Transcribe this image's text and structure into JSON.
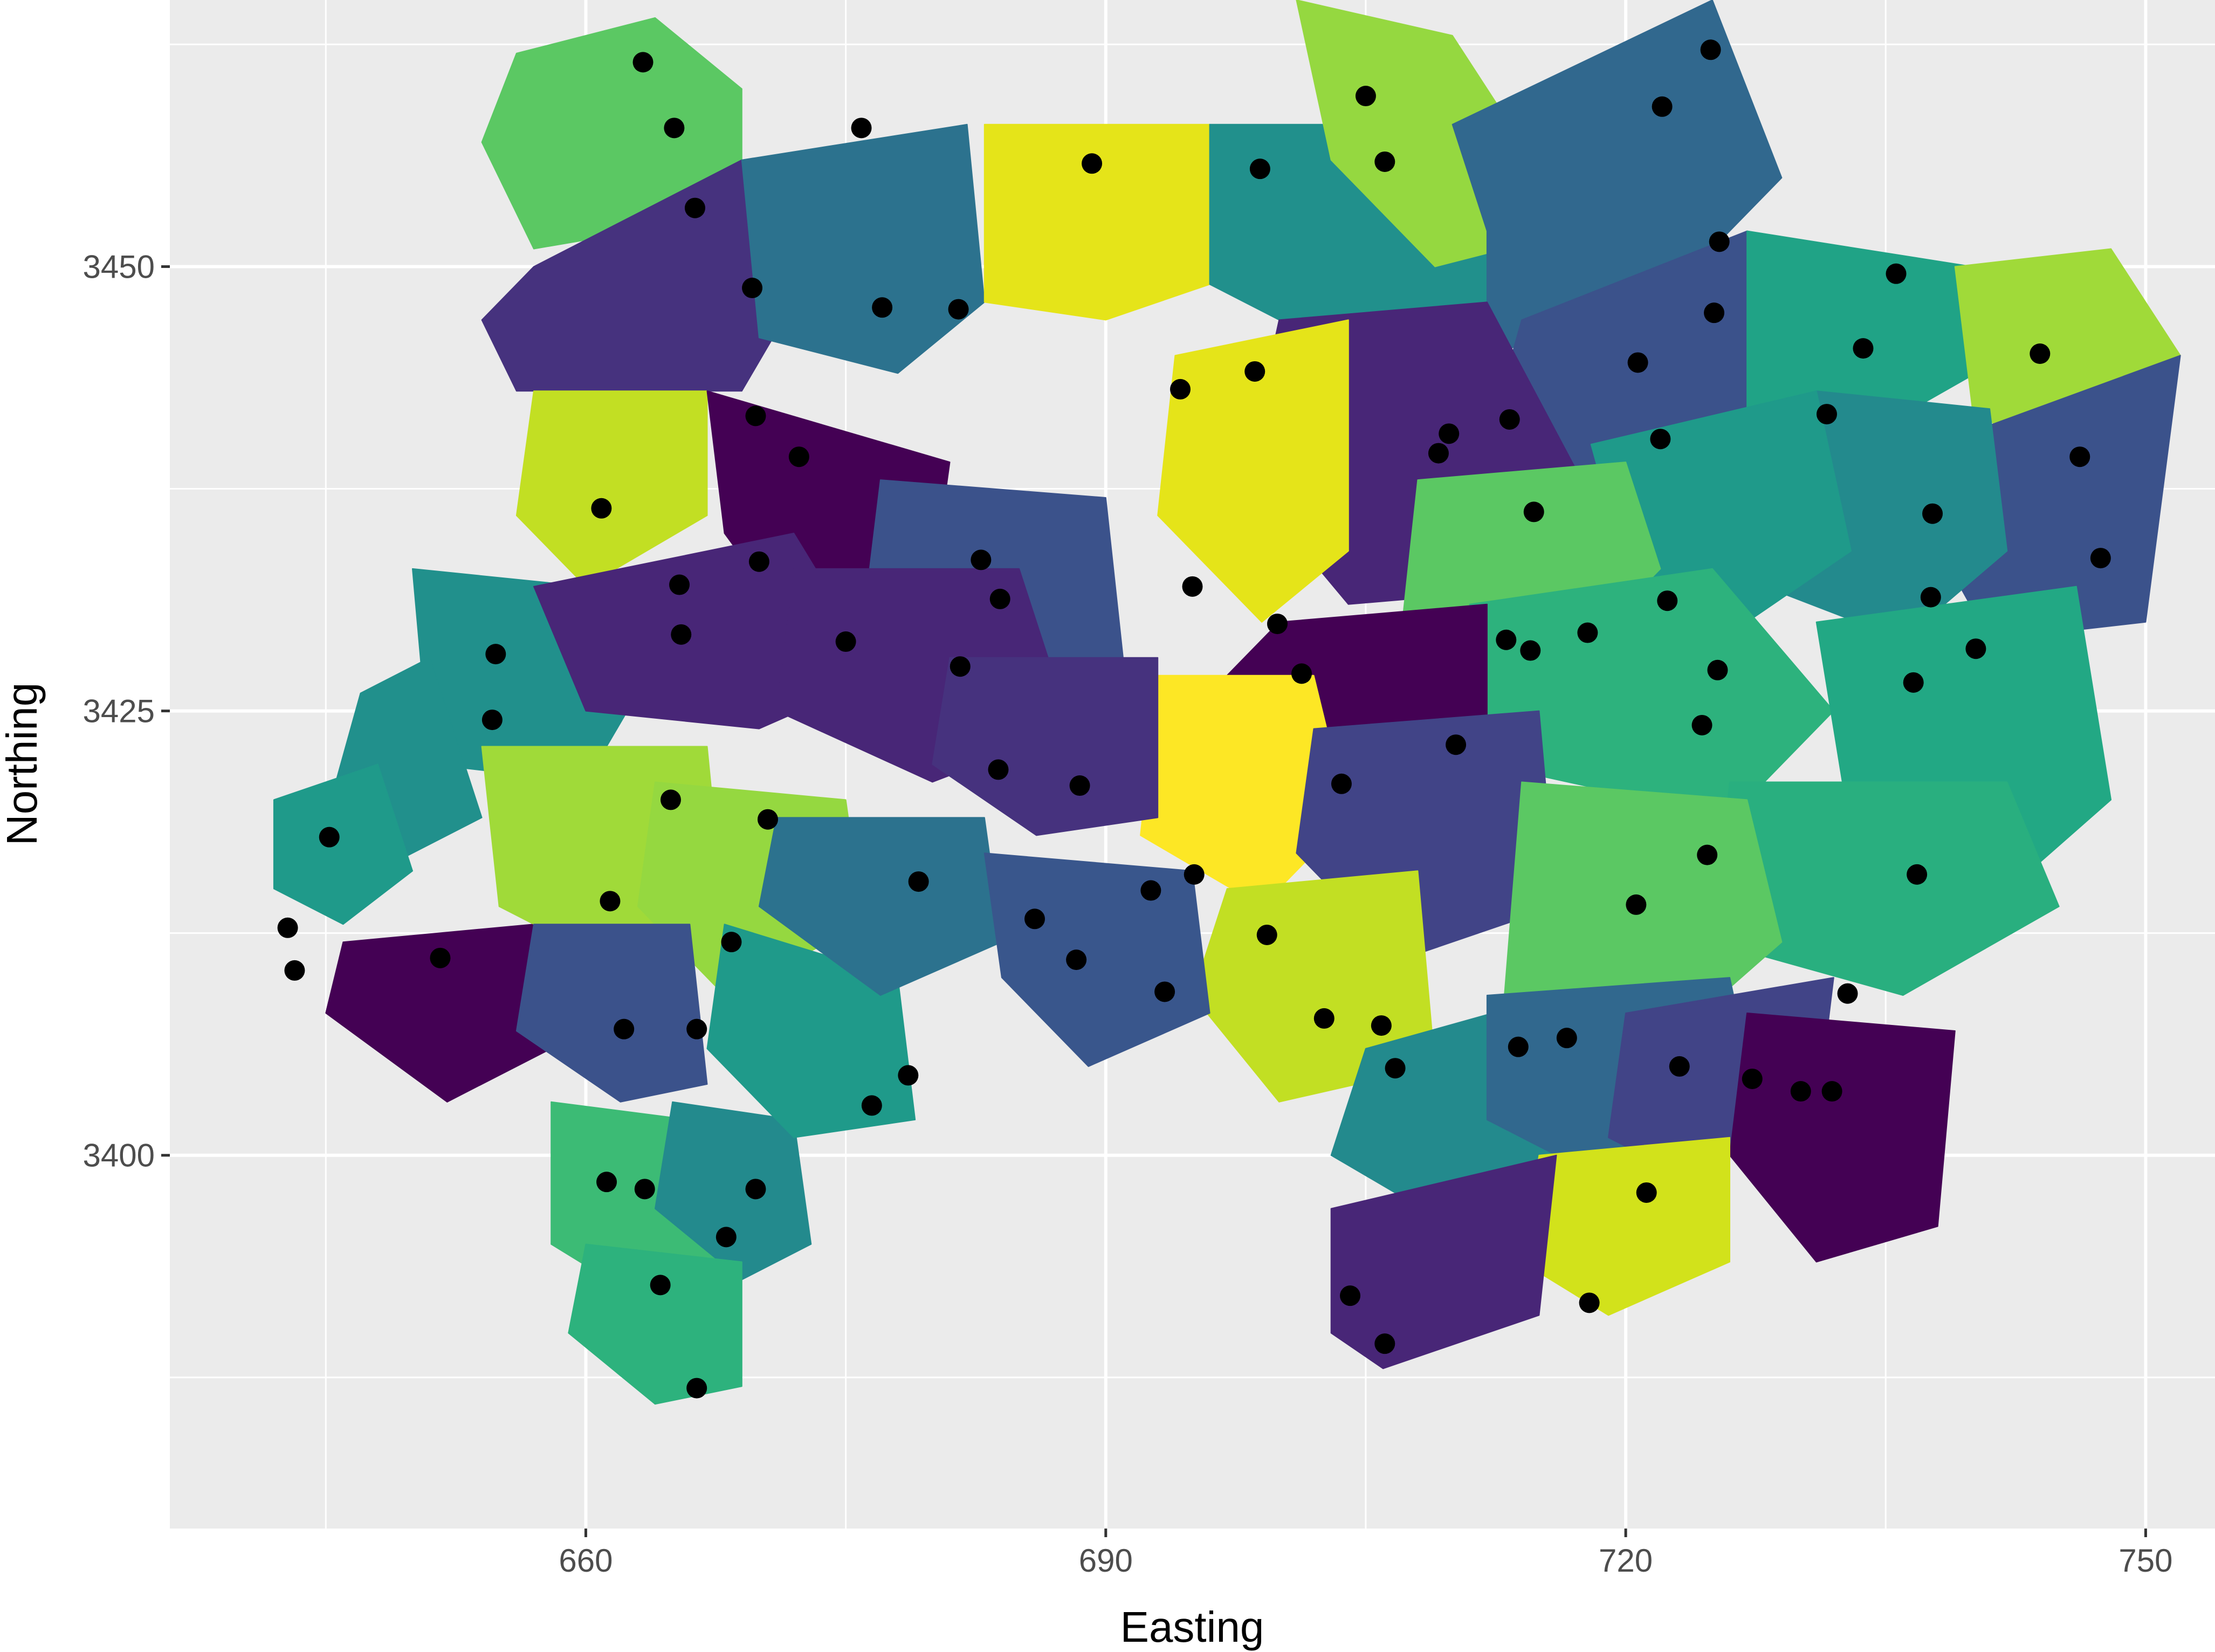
{
  "chart_data": {
    "type": "scatter",
    "xlabel": "Easting",
    "ylabel": "Northing",
    "xlim": [
      636,
      754
    ],
    "ylim": [
      3379,
      3465
    ],
    "x_ticks": [
      660,
      690,
      720,
      750
    ],
    "y_ticks": [
      3400,
      3425,
      3450
    ],
    "x_tick_labels": [
      "660",
      "690",
      "720",
      "750"
    ],
    "y_tick_labels": [
      "3400",
      "3425",
      "3450"
    ],
    "grid": true,
    "legend": "none",
    "background_color": "#EBEBEB",
    "grid_color": "#FFFFFF",
    "point_color": "#000000",
    "fill_colormap": "viridis",
    "regions": [
      {
        "x": [
          656,
          664,
          669,
          669,
          657,
          654
        ],
        "y": [
          3462,
          3464,
          3460,
          3453,
          3451,
          3457
        ],
        "color": "#5BC863"
      },
      {
        "x": [
          657,
          669,
          672,
          669,
          656,
          654
        ],
        "y": [
          3450,
          3456,
          3448,
          3443,
          3443,
          3447
        ],
        "color": "#46327E"
      },
      {
        "x": [
          669,
          682,
          683,
          678,
          670
        ],
        "y": [
          3456,
          3458,
          3448,
          3444,
          3446
        ],
        "color": "#2C728E"
      },
      {
        "x": [
          683,
          696,
          696,
          690,
          683
        ],
        "y": [
          3458,
          3458,
          3449,
          3447,
          3448
        ],
        "color": "#E5E419"
      },
      {
        "x": [
          696,
          712,
          712,
          702,
          696
        ],
        "y": [
          3458,
          3458,
          3448,
          3446,
          3449
        ],
        "color": "#21908C"
      },
      {
        "x": [
          701,
          710,
          714,
          713,
          709,
          703
        ],
        "y": [
          3465,
          3463,
          3457,
          3451,
          3450,
          3456
        ],
        "color": "#95D840"
      },
      {
        "x": [
          710,
          725,
          729,
          722,
          712,
          712
        ],
        "y": [
          3458,
          3465,
          3455,
          3448,
          3445,
          3452
        ],
        "color": "#31688E"
      },
      {
        "x": [
          714,
          727,
          731,
          727,
          718,
          712
        ],
        "y": [
          3447,
          3452,
          3450,
          3441,
          3438,
          3440
        ],
        "color": "#3B528B"
      },
      {
        "x": [
          727,
          740,
          742,
          733,
          727
        ],
        "y": [
          3452,
          3450,
          3445,
          3440,
          3441
        ],
        "color": "#20A386"
      },
      {
        "x": [
          739,
          748,
          752,
          746,
          740
        ],
        "y": [
          3450,
          3451,
          3445,
          3438,
          3442
        ],
        "color": "#A0DA39"
      },
      {
        "x": [
          738,
          752,
          750,
          741,
          737
        ],
        "y": [
          3440,
          3445,
          3430,
          3429,
          3436
        ],
        "color": "#3B528B"
      },
      {
        "x": [
          731,
          741,
          742,
          736,
          728
        ],
        "y": [
          3443,
          3442,
          3434,
          3429,
          3432
        ],
        "color": "#238A8D"
      },
      {
        "x": [
          718,
          731,
          733,
          727,
          720
        ],
        "y": [
          3440,
          3443,
          3434,
          3430,
          3433
        ],
        "color": "#1F9A8A"
      },
      {
        "x": [
          700,
          712,
          718,
          716,
          704,
          698
        ],
        "y": [
          3447,
          3448,
          3437,
          3432,
          3431,
          3438
        ],
        "color": "#482677"
      },
      {
        "x": [
          694,
          704,
          704,
          699,
          693
        ],
        "y": [
          3445,
          3447,
          3434,
          3430,
          3436
        ],
        "color": "#E5E419"
      },
      {
        "x": [
          708,
          720,
          722,
          716,
          707
        ],
        "y": [
          3438,
          3439,
          3433,
          3427,
          3429
        ],
        "color": "#5BC863"
      },
      {
        "x": [
          711,
          725,
          732,
          726,
          712
        ],
        "y": [
          3431,
          3433,
          3425,
          3419,
          3422
        ],
        "color": "#2DB27D"
      },
      {
        "x": [
          731,
          746,
          748,
          741,
          733
        ],
        "y": [
          3430,
          3432,
          3420,
          3414,
          3418
        ],
        "color": "#22A884"
      },
      {
        "x": [
          726,
          742,
          745,
          736,
          725
        ],
        "y": [
          3421,
          3421,
          3414,
          3409,
          3412
        ],
        "color": "#29AF7F"
      },
      {
        "x": [
          700,
          712,
          712,
          702,
          696
        ],
        "y": [
          3430,
          3431,
          3422,
          3419,
          3426
        ],
        "color": "#440154"
      },
      {
        "x": [
          693,
          702,
          704,
          699,
          692
        ],
        "y": [
          3427,
          3427,
          3419,
          3414,
          3418
        ],
        "color": "#FDE725"
      },
      {
        "x": [
          702,
          715,
          716,
          707,
          701
        ],
        "y": [
          3424,
          3425,
          3414,
          3411,
          3417
        ],
        "color": "#414487"
      },
      {
        "x": [
          714,
          727,
          729,
          722,
          713
        ],
        "y": [
          3421,
          3420,
          3412,
          3406,
          3409
        ],
        "color": "#5BC863"
      },
      {
        "x": [
          697,
          708,
          709,
          700,
          695
        ],
        "y": [
          3415,
          3416,
          3405,
          3403,
          3409
        ],
        "color": "#C2DF23"
      },
      {
        "x": [
          705,
          716,
          717,
          710,
          703
        ],
        "y": [
          3406,
          3409,
          3400,
          3396,
          3400
        ],
        "color": "#238A8D"
      },
      {
        "x": [
          712,
          726,
          728,
          720,
          712
        ],
        "y": [
          3409,
          3410,
          3401,
          3398,
          3402
        ],
        "color": "#31688E"
      },
      {
        "x": [
          720,
          732,
          731,
          723,
          719
        ],
        "y": [
          3408,
          3410,
          3402,
          3399,
          3401
        ],
        "color": "#414487"
      },
      {
        "x": [
          727,
          739,
          738,
          731,
          726
        ],
        "y": [
          3408,
          3407,
          3396,
          3394,
          3400
        ],
        "color": "#440154"
      },
      {
        "x": [
          715,
          726,
          726,
          719,
          714
        ],
        "y": [
          3400,
          3401,
          3394,
          3391,
          3394
        ],
        "color": "#D2E21B"
      },
      {
        "x": [
          703,
          716,
          715,
          706,
          703
        ],
        "y": [
          3397,
          3400,
          3391,
          3388,
          3390
        ],
        "color": "#482677"
      },
      {
        "x": [
          650,
          660,
          663,
          660,
          651
        ],
        "y": [
          3433,
          3432,
          3426,
          3421,
          3422
        ],
        "color": "#21908C"
      },
      {
        "x": [
          647,
          651,
          654,
          648,
          645
        ],
        "y": [
          3426,
          3428,
          3419,
          3416,
          3419
        ],
        "color": "#21908C"
      },
      {
        "x": [
          642,
          648,
          650,
          646,
          642
        ],
        "y": [
          3420,
          3422,
          3416,
          3413,
          3415
        ],
        "color": "#1F9A8A"
      },
      {
        "x": [
          646,
          657,
          658,
          652,
          645
        ],
        "y": [
          3412,
          3413,
          3406,
          3403,
          3408
        ],
        "color": "#440154"
      },
      {
        "x": [
          654,
          667,
          668,
          661,
          655
        ],
        "y": [
          3423,
          3423,
          3413,
          3411,
          3414
        ],
        "color": "#A0DA39"
      },
      {
        "x": [
          664,
          675,
          676,
          668,
          663
        ],
        "y": [
          3421,
          3420,
          3413,
          3409,
          3414
        ],
        "color": "#95D840"
      },
      {
        "x": [
          657,
          666,
          667,
          662,
          656
        ],
        "y": [
          3413,
          3413,
          3404,
          3403,
          3407
        ],
        "color": "#3B528B"
      },
      {
        "x": [
          658,
          666,
          668,
          663,
          658
        ],
        "y": [
          3403,
          3402,
          3394,
          3392,
          3395
        ],
        "color": "#3CBB75"
      },
      {
        "x": [
          665,
          672,
          673,
          669,
          664
        ],
        "y": [
          3403,
          3402,
          3395,
          3393,
          3397
        ],
        "color": "#238A8D"
      },
      {
        "x": [
          660,
          669,
          669,
          664,
          659
        ],
        "y": [
          3395,
          3394,
          3387,
          3386,
          3390
        ],
        "color": "#2DB27D"
      },
      {
        "x": [
          668,
          678,
          679,
          672,
          667
        ],
        "y": [
          3413,
          3410,
          3402,
          3401,
          3406
        ],
        "color": "#1F9A8A"
      },
      {
        "x": [
          671,
          683,
          684,
          677,
          670
        ],
        "y": [
          3419,
          3419,
          3412,
          3409,
          3414
        ],
        "color": "#2C728E"
      },
      {
        "x": [
          657,
          667,
          667,
          660,
          656
        ],
        "y": [
          3443,
          3443,
          3436,
          3432,
          3436
        ],
        "color": "#C2DF23"
      },
      {
        "x": [
          667,
          681,
          680,
          671,
          668
        ],
        "y": [
          3443,
          3439,
          3432,
          3431,
          3435
        ],
        "color": "#440154"
      },
      {
        "x": [
          657,
          672,
          677,
          670,
          660
        ],
        "y": [
          3432,
          3435,
          3427,
          3424,
          3425
        ],
        "color": "#482677"
      },
      {
        "x": [
          677,
          690,
          691,
          683,
          676
        ],
        "y": [
          3438,
          3437,
          3428,
          3426,
          3430
        ],
        "color": "#3B528B"
      },
      {
        "x": [
          672,
          685,
          688,
          680,
          671
        ],
        "y": [
          3433,
          3433,
          3424,
          3421,
          3425
        ],
        "color": "#482677"
      },
      {
        "x": [
          681,
          693,
          693,
          686,
          680
        ],
        "y": [
          3428,
          3428,
          3419,
          3418,
          3422
        ],
        "color": "#46327E"
      },
      {
        "x": [
          683,
          695,
          696,
          689,
          684
        ],
        "y": [
          3417,
          3416,
          3408,
          3405,
          3410
        ],
        "color": "#39568C"
      }
    ],
    "points": [
      {
        "x": 663.3,
        "y": 3461.5
      },
      {
        "x": 665.1,
        "y": 3457.8
      },
      {
        "x": 666.3,
        "y": 3453.3
      },
      {
        "x": 669.6,
        "y": 3448.8
      },
      {
        "x": 675.9,
        "y": 3457.8
      },
      {
        "x": 677.1,
        "y": 3447.7
      },
      {
        "x": 681.5,
        "y": 3447.6
      },
      {
        "x": 689.2,
        "y": 3455.8
      },
      {
        "x": 698.9,
        "y": 3455.5
      },
      {
        "x": 705.0,
        "y": 3459.6
      },
      {
        "x": 706.1,
        "y": 3455.9
      },
      {
        "x": 722.1,
        "y": 3459.0
      },
      {
        "x": 724.9,
        "y": 3462.2
      },
      {
        "x": 725.4,
        "y": 3451.4
      },
      {
        "x": 725.1,
        "y": 3447.4
      },
      {
        "x": 735.6,
        "y": 3449.6
      },
      {
        "x": 733.7,
        "y": 3445.4
      },
      {
        "x": 743.9,
        "y": 3445.1
      },
      {
        "x": 731.6,
        "y": 3441.7
      },
      {
        "x": 720.7,
        "y": 3444.6
      },
      {
        "x": 722.0,
        "y": 3440.3
      },
      {
        "x": 713.3,
        "y": 3441.4
      },
      {
        "x": 709.8,
        "y": 3440.6
      },
      {
        "x": 709.2,
        "y": 3439.5
      },
      {
        "x": 698.6,
        "y": 3444.1
      },
      {
        "x": 694.3,
        "y": 3443.1
      },
      {
        "x": 669.8,
        "y": 3441.6
      },
      {
        "x": 672.3,
        "y": 3439.3
      },
      {
        "x": 660.9,
        "y": 3436.4
      },
      {
        "x": 714.7,
        "y": 3436.2
      },
      {
        "x": 746.2,
        "y": 3439.3
      },
      {
        "x": 737.7,
        "y": 3436.1
      },
      {
        "x": 747.4,
        "y": 3433.6
      },
      {
        "x": 737.6,
        "y": 3431.4
      },
      {
        "x": 722.4,
        "y": 3431.2
      },
      {
        "x": 682.8,
        "y": 3433.5
      },
      {
        "x": 683.9,
        "y": 3431.3
      },
      {
        "x": 670.0,
        "y": 3433.4
      },
      {
        "x": 665.4,
        "y": 3432.1
      },
      {
        "x": 695.0,
        "y": 3432.0
      },
      {
        "x": 699.9,
        "y": 3429.9
      },
      {
        "x": 701.3,
        "y": 3427.1
      },
      {
        "x": 713.1,
        "y": 3429.0
      },
      {
        "x": 714.5,
        "y": 3428.4
      },
      {
        "x": 717.8,
        "y": 3429.4
      },
      {
        "x": 725.3,
        "y": 3427.3
      },
      {
        "x": 740.2,
        "y": 3428.5
      },
      {
        "x": 736.6,
        "y": 3426.6
      },
      {
        "x": 665.5,
        "y": 3429.3
      },
      {
        "x": 675.0,
        "y": 3428.9
      },
      {
        "x": 681.6,
        "y": 3427.5
      },
      {
        "x": 654.8,
        "y": 3428.2
      },
      {
        "x": 654.6,
        "y": 3424.5
      },
      {
        "x": 724.4,
        "y": 3424.2
      },
      {
        "x": 710.2,
        "y": 3423.1
      },
      {
        "x": 683.8,
        "y": 3421.7
      },
      {
        "x": 688.5,
        "y": 3420.8
      },
      {
        "x": 703.6,
        "y": 3420.9
      },
      {
        "x": 664.9,
        "y": 3420.0
      },
      {
        "x": 670.5,
        "y": 3418.9
      },
      {
        "x": 645.2,
        "y": 3417.9
      },
      {
        "x": 724.7,
        "y": 3416.9
      },
      {
        "x": 736.8,
        "y": 3415.8
      },
      {
        "x": 695.1,
        "y": 3415.8
      },
      {
        "x": 692.6,
        "y": 3414.9
      },
      {
        "x": 679.2,
        "y": 3415.4
      },
      {
        "x": 661.4,
        "y": 3414.3
      },
      {
        "x": 720.6,
        "y": 3414.1
      },
      {
        "x": 685.9,
        "y": 3413.3
      },
      {
        "x": 642.8,
        "y": 3412.8
      },
      {
        "x": 699.3,
        "y": 3412.4
      },
      {
        "x": 668.4,
        "y": 3412.0
      },
      {
        "x": 651.6,
        "y": 3411.1
      },
      {
        "x": 688.3,
        "y": 3411.0
      },
      {
        "x": 643.2,
        "y": 3410.4
      },
      {
        "x": 693.4,
        "y": 3409.2
      },
      {
        "x": 732.8,
        "y": 3409.1
      },
      {
        "x": 702.6,
        "y": 3407.7
      },
      {
        "x": 705.9,
        "y": 3407.3
      },
      {
        "x": 662.2,
        "y": 3407.1
      },
      {
        "x": 666.4,
        "y": 3407.1
      },
      {
        "x": 716.6,
        "y": 3406.6
      },
      {
        "x": 713.8,
        "y": 3406.1
      },
      {
        "x": 723.1,
        "y": 3405.0
      },
      {
        "x": 706.7,
        "y": 3404.9
      },
      {
        "x": 678.6,
        "y": 3404.5
      },
      {
        "x": 727.3,
        "y": 3404.3
      },
      {
        "x": 731.9,
        "y": 3403.6
      },
      {
        "x": 730.1,
        "y": 3403.6
      },
      {
        "x": 676.5,
        "y": 3402.8
      },
      {
        "x": 661.2,
        "y": 3398.5
      },
      {
        "x": 663.4,
        "y": 3398.1
      },
      {
        "x": 669.8,
        "y": 3398.1
      },
      {
        "x": 721.2,
        "y": 3397.9
      },
      {
        "x": 668.1,
        "y": 3395.4
      },
      {
        "x": 664.3,
        "y": 3392.7
      },
      {
        "x": 704.1,
        "y": 3392.1
      },
      {
        "x": 717.9,
        "y": 3391.7
      },
      {
        "x": 706.1,
        "y": 3389.4
      },
      {
        "x": 666.4,
        "y": 3386.9
      }
    ]
  }
}
